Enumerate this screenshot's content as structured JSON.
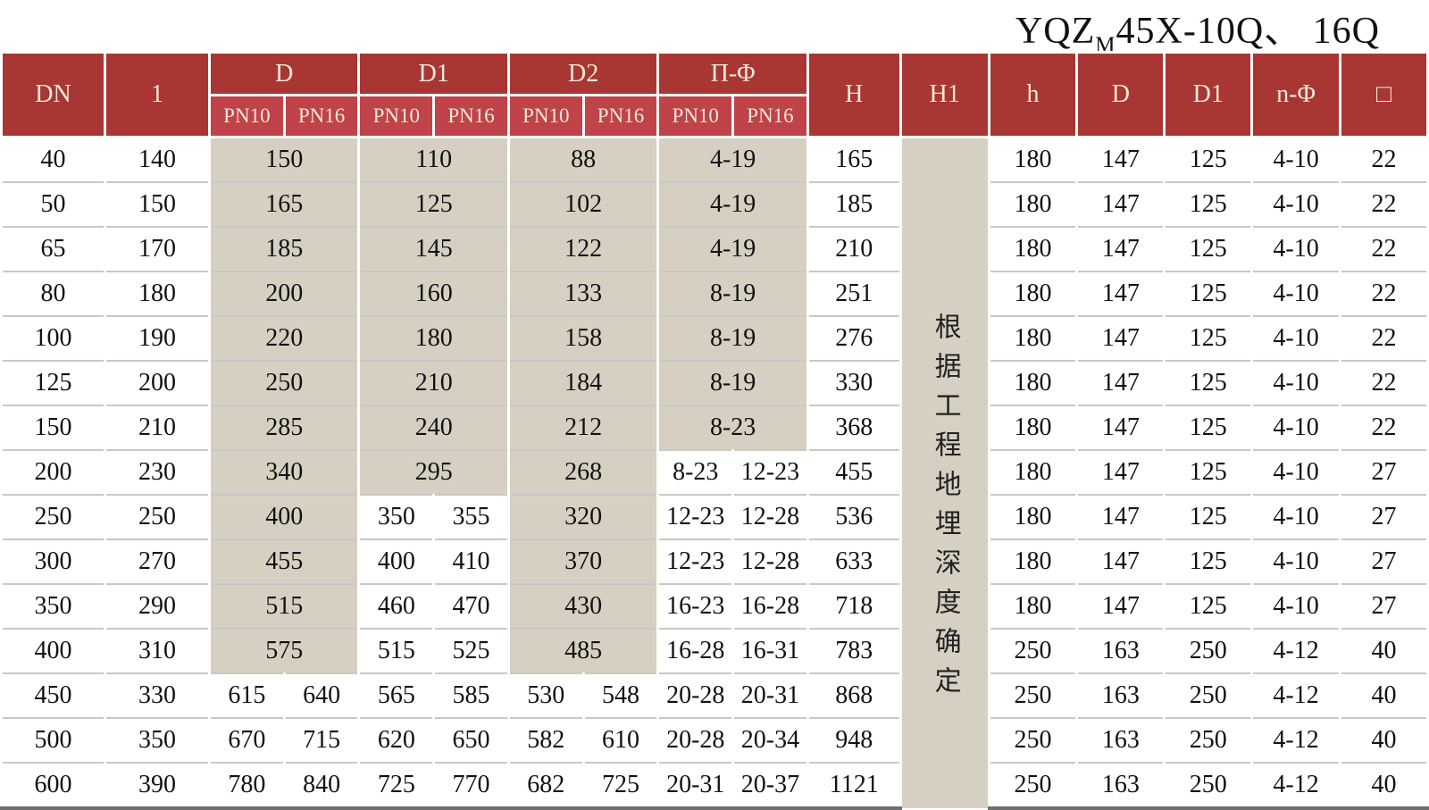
{
  "title": {
    "prefix": "YQZ",
    "subscript": "M",
    "suffix": "45X-10Q、 16Q"
  },
  "colors": {
    "header_dark_red": "#a83632",
    "header_light_red": "#bf4348",
    "merged_cell_beige": "#d6d0c2",
    "header_text_cream": "#f3e9da",
    "row_line_gray": "#c8c8c8"
  },
  "table": {
    "headers": {
      "dn": "DN",
      "l": "1",
      "d": "D",
      "d1": "D1",
      "d2": "D2",
      "pf": "Π-Φ",
      "h": "H",
      "h1": "H1",
      "h_small": "h",
      "d_right": "D",
      "d1_right": "D1",
      "nphi": "n-Φ",
      "square": "□",
      "pn10": "PN10",
      "pn16": "PN16"
    },
    "h1_note": "根据工程地埋深度确定",
    "rows": [
      {
        "dn": "40",
        "l": "140",
        "D": [
          "150"
        ],
        "D1": [
          "110"
        ],
        "D2": [
          "88"
        ],
        "PF": [
          "4-19"
        ],
        "H": "165",
        "h": "180",
        "Dr": "147",
        "D1r": "125",
        "nPhi": "4-10",
        "sq": "22"
      },
      {
        "dn": "50",
        "l": "150",
        "D": [
          "165"
        ],
        "D1": [
          "125"
        ],
        "D2": [
          "102"
        ],
        "PF": [
          "4-19"
        ],
        "H": "185",
        "h": "180",
        "Dr": "147",
        "D1r": "125",
        "nPhi": "4-10",
        "sq": "22"
      },
      {
        "dn": "65",
        "l": "170",
        "D": [
          "185"
        ],
        "D1": [
          "145"
        ],
        "D2": [
          "122"
        ],
        "PF": [
          "4-19"
        ],
        "H": "210",
        "h": "180",
        "Dr": "147",
        "D1r": "125",
        "nPhi": "4-10",
        "sq": "22"
      },
      {
        "dn": "80",
        "l": "180",
        "D": [
          "200"
        ],
        "D1": [
          "160"
        ],
        "D2": [
          "133"
        ],
        "PF": [
          "8-19"
        ],
        "H": "251",
        "h": "180",
        "Dr": "147",
        "D1r": "125",
        "nPhi": "4-10",
        "sq": "22"
      },
      {
        "dn": "100",
        "l": "190",
        "D": [
          "220"
        ],
        "D1": [
          "180"
        ],
        "D2": [
          "158"
        ],
        "PF": [
          "8-19"
        ],
        "H": "276",
        "h": "180",
        "Dr": "147",
        "D1r": "125",
        "nPhi": "4-10",
        "sq": "22"
      },
      {
        "dn": "125",
        "l": "200",
        "D": [
          "250"
        ],
        "D1": [
          "210"
        ],
        "D2": [
          "184"
        ],
        "PF": [
          "8-19"
        ],
        "H": "330",
        "h": "180",
        "Dr": "147",
        "D1r": "125",
        "nPhi": "4-10",
        "sq": "22"
      },
      {
        "dn": "150",
        "l": "210",
        "D": [
          "285"
        ],
        "D1": [
          "240"
        ],
        "D2": [
          "212"
        ],
        "PF": [
          "8-23"
        ],
        "H": "368",
        "h": "180",
        "Dr": "147",
        "D1r": "125",
        "nPhi": "4-10",
        "sq": "22"
      },
      {
        "dn": "200",
        "l": "230",
        "D": [
          "340"
        ],
        "D1": [
          "295"
        ],
        "D2": [
          "268"
        ],
        "PF": [
          "8-23",
          "12-23"
        ],
        "H": "455",
        "h": "180",
        "Dr": "147",
        "D1r": "125",
        "nPhi": "4-10",
        "sq": "27"
      },
      {
        "dn": "250",
        "l": "250",
        "D": [
          "400"
        ],
        "D1": [
          "350",
          "355"
        ],
        "D2": [
          "320"
        ],
        "PF": [
          "12-23",
          "12-28"
        ],
        "H": "536",
        "h": "180",
        "Dr": "147",
        "D1r": "125",
        "nPhi": "4-10",
        "sq": "27"
      },
      {
        "dn": "300",
        "l": "270",
        "D": [
          "455"
        ],
        "D1": [
          "400",
          "410"
        ],
        "D2": [
          "370"
        ],
        "PF": [
          "12-23",
          "12-28"
        ],
        "H": "633",
        "h": "180",
        "Dr": "147",
        "D1r": "125",
        "nPhi": "4-10",
        "sq": "27"
      },
      {
        "dn": "350",
        "l": "290",
        "D": [
          "515"
        ],
        "D1": [
          "460",
          "470"
        ],
        "D2": [
          "430"
        ],
        "PF": [
          "16-23",
          "16-28"
        ],
        "H": "718",
        "h": "180",
        "Dr": "147",
        "D1r": "125",
        "nPhi": "4-10",
        "sq": "27"
      },
      {
        "dn": "400",
        "l": "310",
        "D": [
          "575"
        ],
        "D1": [
          "515",
          "525"
        ],
        "D2": [
          "485"
        ],
        "PF": [
          "16-28",
          "16-31"
        ],
        "H": "783",
        "h": "250",
        "Dr": "163",
        "D1r": "250",
        "nPhi": "4-12",
        "sq": "40"
      },
      {
        "dn": "450",
        "l": "330",
        "D": [
          "615",
          "640"
        ],
        "D1": [
          "565",
          "585"
        ],
        "D2": [
          "530",
          "548"
        ],
        "PF": [
          "20-28",
          "20-31"
        ],
        "H": "868",
        "h": "250",
        "Dr": "163",
        "D1r": "250",
        "nPhi": "4-12",
        "sq": "40"
      },
      {
        "dn": "500",
        "l": "350",
        "D": [
          "670",
          "715"
        ],
        "D1": [
          "620",
          "650"
        ],
        "D2": [
          "582",
          "610"
        ],
        "PF": [
          "20-28",
          "20-34"
        ],
        "H": "948",
        "h": "250",
        "Dr": "163",
        "D1r": "250",
        "nPhi": "4-12",
        "sq": "40"
      },
      {
        "dn": "600",
        "l": "390",
        "D": [
          "780",
          "840"
        ],
        "D1": [
          "725",
          "770"
        ],
        "D2": [
          "682",
          "725"
        ],
        "PF": [
          "20-31",
          "20-37"
        ],
        "H": "1121",
        "h": "250",
        "Dr": "163",
        "D1r": "250",
        "nPhi": "4-12",
        "sq": "40"
      }
    ]
  }
}
